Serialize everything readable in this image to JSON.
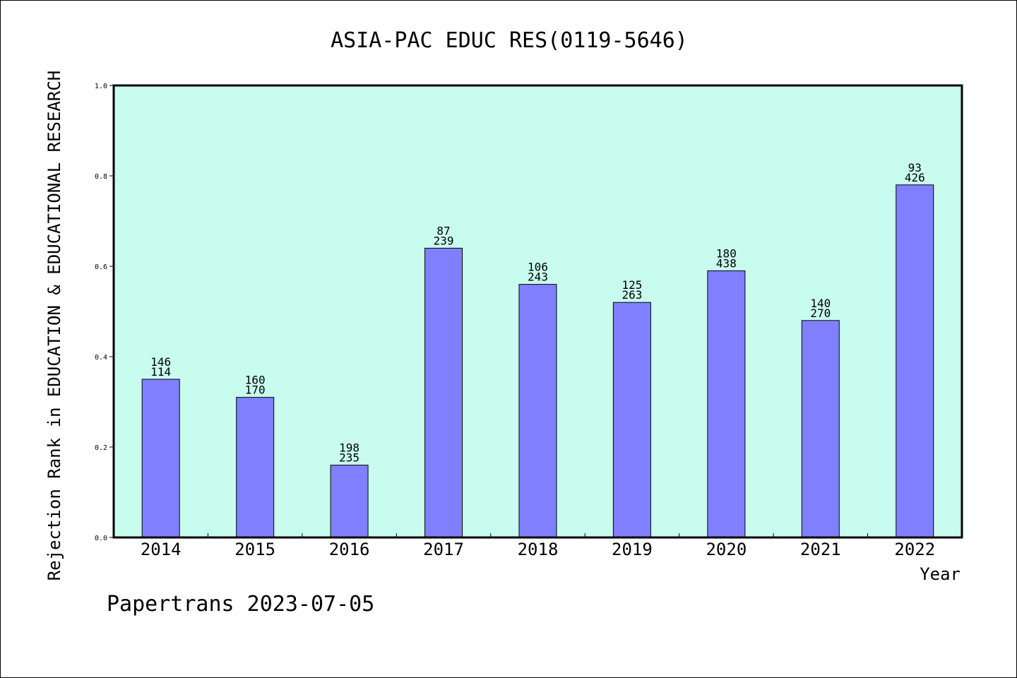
{
  "chart_data": {
    "type": "bar",
    "title": "ASIA-PAC EDUC RES(0119-5646)",
    "xlabel": "Year",
    "ylabel": "Rejection Rank in EDUCATION & EDUCATIONAL RESEARCH",
    "ylim": [
      0,
      1.0
    ],
    "yticks": [
      "0.0",
      "0.2",
      "0.4",
      "0.6",
      "0.8",
      "1.0"
    ],
    "categories": [
      "2014",
      "2015",
      "2016",
      "2017",
      "2018",
      "2019",
      "2020",
      "2021",
      "2022"
    ],
    "values": [
      0.35,
      0.31,
      0.16,
      0.64,
      0.56,
      0.52,
      0.59,
      0.48,
      0.78
    ],
    "label_top": [
      "146",
      "160",
      "198",
      "87",
      "106",
      "125",
      "180",
      "140",
      "93"
    ],
    "label_bottom": [
      "114",
      "170",
      "235",
      "239",
      "243",
      "263",
      "438",
      "270",
      "426"
    ],
    "grid": false,
    "plot_background": "#c8fcee",
    "bar_color": "#8080ff"
  },
  "footer": "Papertrans 2023-07-05"
}
